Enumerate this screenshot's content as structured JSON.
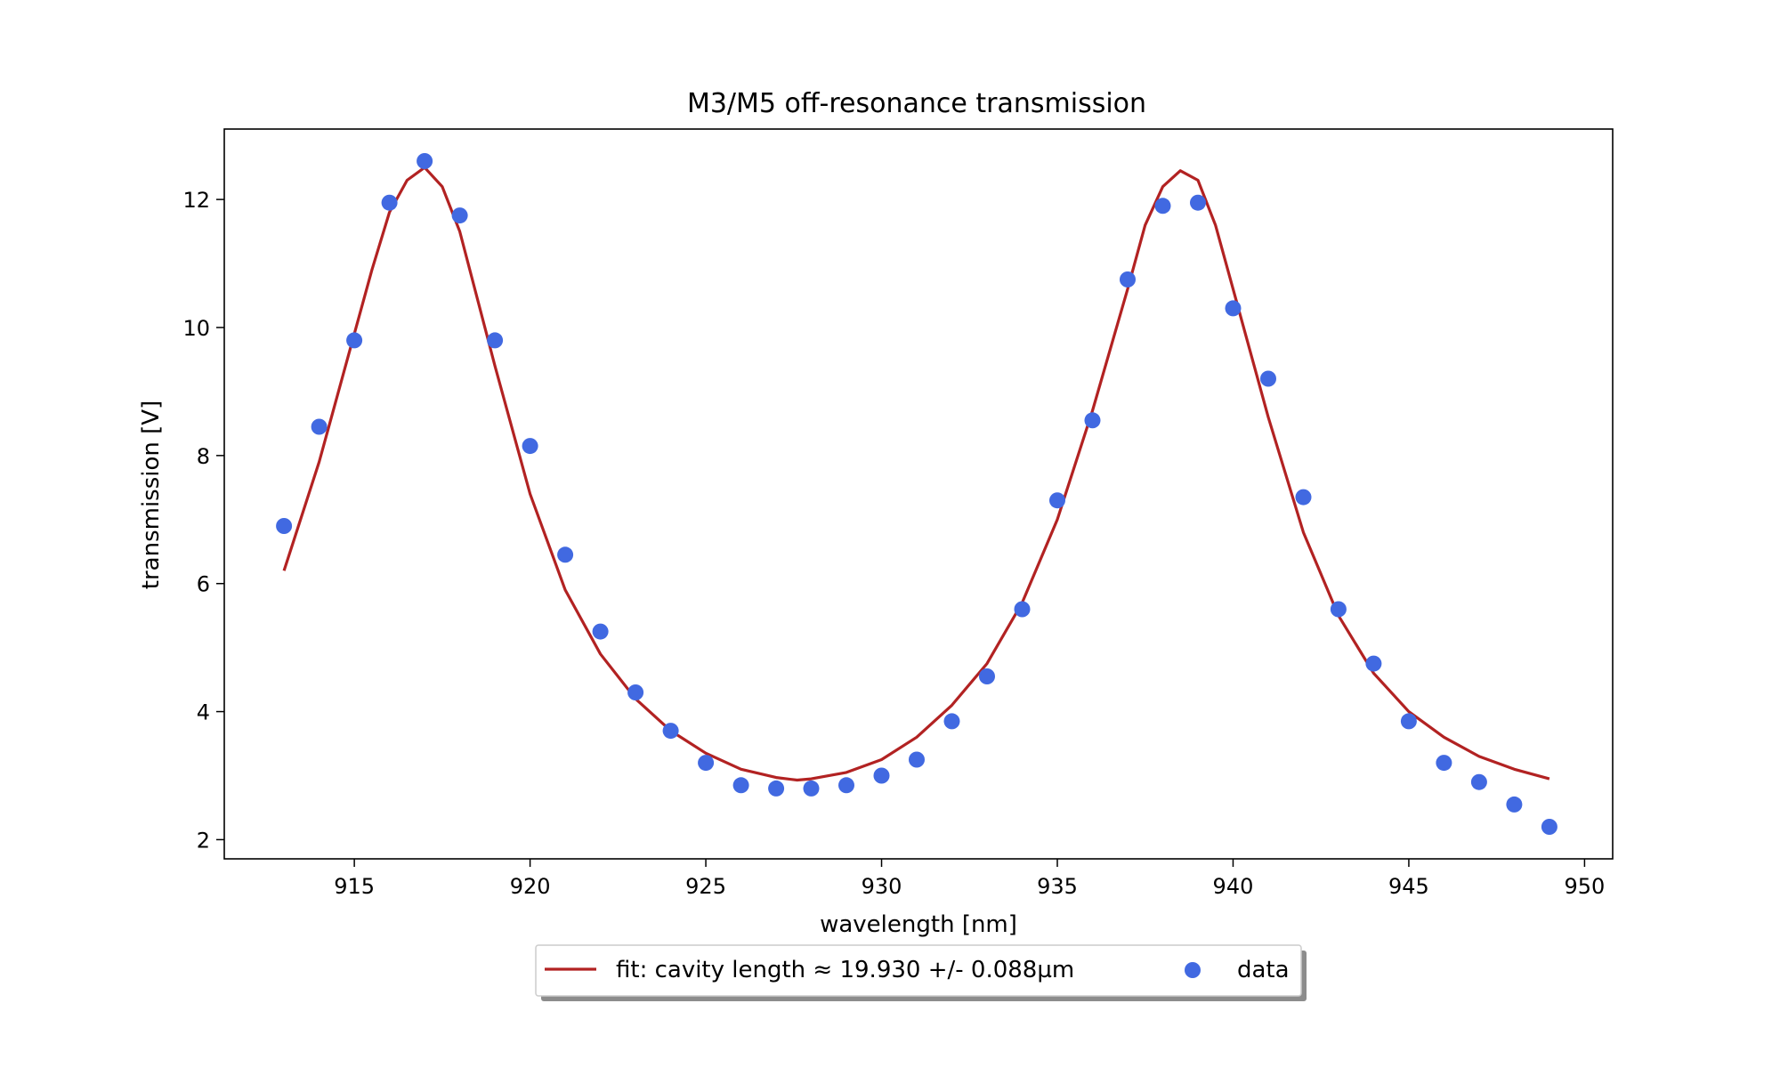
{
  "chart_data": {
    "type": "scatter",
    "title": "M3/M5 off-resonance transmission",
    "xlabel": "wavelength [nm]",
    "ylabel": "transmission [V]",
    "xlim": [
      911.3,
      950.8
    ],
    "ylim": [
      1.7,
      13.1
    ],
    "xticks": [
      915,
      920,
      925,
      930,
      935,
      940,
      945,
      950
    ],
    "yticks": [
      2,
      4,
      6,
      8,
      10,
      12
    ],
    "grid": false,
    "legend_position": "below-center",
    "series": [
      {
        "name": "fit: cavity length ≈ 19.930 +/- 0.088µm",
        "kind": "line",
        "color": "#b22222",
        "x": [
          913,
          914,
          915,
          915.5,
          916,
          916.5,
          917,
          917.5,
          918,
          919,
          920,
          921,
          922,
          923,
          924,
          925,
          926,
          927,
          927.6,
          928,
          929,
          930,
          931,
          932,
          933,
          934,
          935,
          936,
          937,
          937.5,
          938,
          938.5,
          939,
          939.5,
          940,
          941,
          942,
          943,
          944,
          945,
          946,
          947,
          948,
          949
        ],
        "y": [
          6.2,
          7.9,
          9.9,
          10.9,
          11.8,
          12.3,
          12.5,
          12.2,
          11.5,
          9.4,
          7.4,
          5.9,
          4.9,
          4.2,
          3.7,
          3.35,
          3.1,
          2.97,
          2.93,
          2.95,
          3.05,
          3.25,
          3.6,
          4.1,
          4.75,
          5.7,
          7.0,
          8.7,
          10.6,
          11.6,
          12.2,
          12.45,
          12.3,
          11.6,
          10.6,
          8.6,
          6.8,
          5.5,
          4.6,
          4.0,
          3.6,
          3.3,
          3.1,
          2.95
        ]
      },
      {
        "name": "data",
        "kind": "scatter",
        "color": "#4169e1",
        "x": [
          913,
          914,
          915,
          916,
          917,
          918,
          919,
          920,
          921,
          922,
          923,
          924,
          925,
          926,
          927,
          928,
          929,
          930,
          931,
          932,
          933,
          934,
          935,
          936,
          937,
          938,
          939,
          940,
          941,
          942,
          943,
          944,
          945,
          946,
          947,
          948,
          949
        ],
        "y": [
          6.9,
          8.45,
          9.8,
          11.95,
          12.6,
          11.75,
          9.8,
          8.15,
          6.45,
          5.25,
          4.3,
          3.7,
          3.2,
          2.85,
          2.8,
          2.8,
          2.85,
          3.0,
          3.25,
          3.85,
          4.55,
          5.6,
          7.3,
          8.55,
          10.75,
          11.9,
          11.95,
          10.3,
          9.2,
          7.35,
          5.6,
          4.75,
          3.85,
          3.2,
          2.9,
          2.55,
          2.2
        ]
      }
    ]
  }
}
